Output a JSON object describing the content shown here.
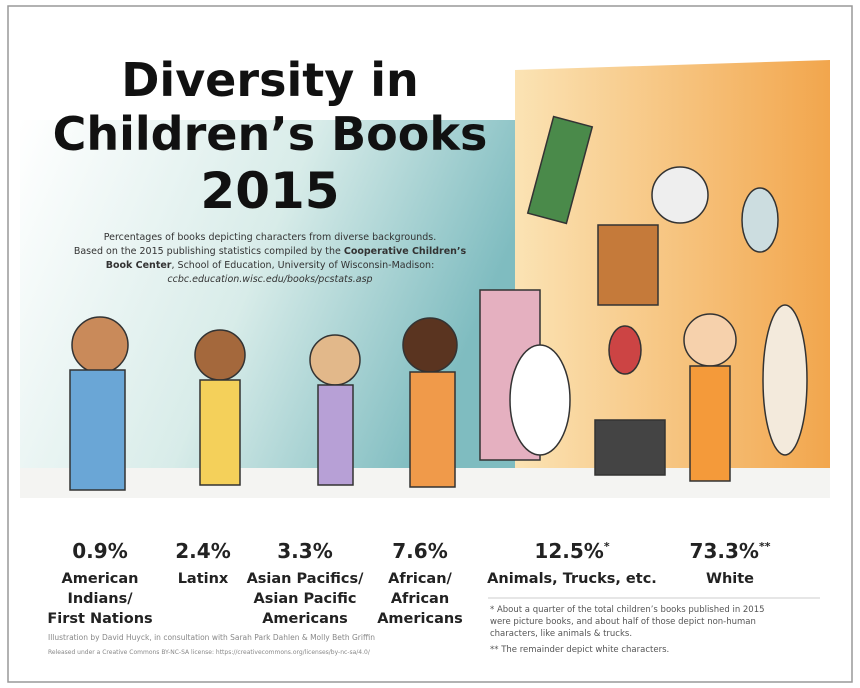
{
  "header": {
    "title_lines": [
      "Diversity in",
      "Children’s Books"
    ],
    "year": "2015"
  },
  "description": {
    "line1": "Percentages of books depicting characters from diverse backgrounds.",
    "line2": {
      "text": "Based on the 2015 publishing statistics compiled by the ",
      "bold": "Cooperative Children’s"
    },
    "line3": {
      "bold": "Book Center",
      "text": ", School of Education, University of Wisconsin-Madison:"
    },
    "line4": "ccbc.education.wisc.edu/books/pcstats.asp"
  },
  "stats": [
    {
      "percent": "0.9%",
      "label_lines": [
        "American",
        "Indians/",
        "First Nations"
      ]
    },
    {
      "percent": "2.4%",
      "label_lines": [
        "Latinx"
      ]
    },
    {
      "percent": "3.3%",
      "label_lines": [
        "Asian Pacifics/",
        "Asian Pacific",
        "Americans"
      ]
    },
    {
      "percent": "7.6%",
      "label_lines": [
        "African/",
        "African",
        "Americans"
      ]
    },
    {
      "percent": "12.5%",
      "note": "*",
      "label_lines": [
        "Animals, Trucks, etc."
      ]
    },
    {
      "percent": "73.3%",
      "note": "**",
      "label_lines": [
        "White"
      ]
    }
  ],
  "footnotes": [
    "* About a quarter of the total children’s books published in 2015",
    "were picture books, and about half of those depict non-human",
    "characters, like animals & trucks.",
    "** The remainder depict white characters."
  ],
  "credits": [
    "Illustration by David Huyck, in consultation with Sarah Park Dahlen & Molly Beth Griffin",
    "Released under a Creative Commons BY-NC-SA license: https://creativecommons.org/licenses/by-nc-sa/4.0/"
  ]
}
